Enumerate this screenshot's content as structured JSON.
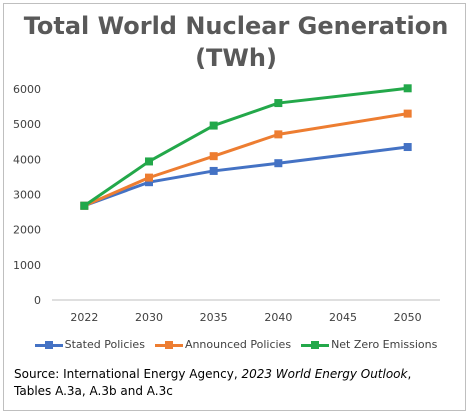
{
  "chart_data": {
    "type": "line",
    "title_line1": "Total World Nuclear Generation",
    "title_line2": "(TWh)",
    "categories": [
      "2022",
      "2030",
      "2035",
      "2040",
      "2045",
      "2050"
    ],
    "ylim": [
      0,
      6000
    ],
    "yticks": [
      0,
      1000,
      2000,
      3000,
      4000,
      5000,
      6000
    ],
    "grid": false,
    "legend_position": "bottom",
    "series": [
      {
        "name": "Stated Policies",
        "color": "#4472c4",
        "values": [
          2680,
          3350,
          3670,
          3890,
          null,
          4350
        ]
      },
      {
        "name": "Announced Policies",
        "color": "#ed7d31",
        "values": [
          2680,
          3480,
          4090,
          4710,
          null,
          5300
        ]
      },
      {
        "name": "Net Zero Emissions",
        "color": "#23a84a",
        "values": [
          2680,
          3940,
          4960,
          5600,
          null,
          6020
        ]
      }
    ]
  },
  "source": {
    "prefix": "Source:  International Energy Agency, ",
    "italic": "2023 World Energy Outlook",
    "suffix": ",",
    "line2": "Tables A.3a, A.3b and A.3c"
  }
}
